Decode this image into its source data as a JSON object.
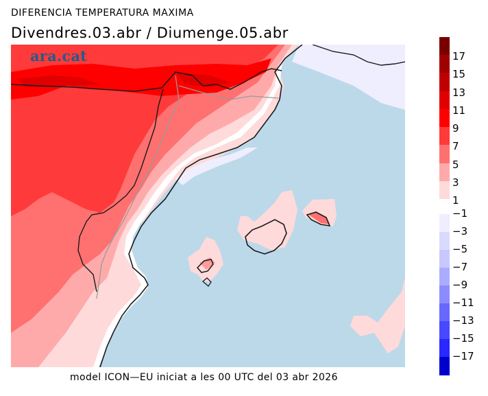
{
  "header": {
    "title": "DIFERENCIA TEMPERATURA MAXIMA",
    "subtitle": "Divendres.03.abr / Diumenge.05.abr"
  },
  "map": {
    "logo_text": "ara.cat",
    "sea_color": "#bcd9ea",
    "coast_color": "#1a1a1a",
    "border_color": "#9a9a9a"
  },
  "footer": {
    "text": "model ICON—EU iniciat a les 00 UTC del 03 abr 2026"
  },
  "colorbar": {
    "positive": {
      "ticks": [
        "17",
        "15",
        "13",
        "11",
        "9",
        "7",
        "5",
        "3",
        "1"
      ],
      "colors": [
        "#7a0000",
        "#a00000",
        "#c00000",
        "#e00000",
        "#ff0000",
        "#ff3a3a",
        "#ff7070",
        "#ffaaaa",
        "#ffdada"
      ]
    },
    "negative": {
      "ticks": [
        "−1",
        "−3",
        "−5",
        "−7",
        "−9",
        "−11",
        "−13",
        "−15",
        "−17"
      ],
      "colors": [
        "#eeeeff",
        "#dadaff",
        "#c8c8ff",
        "#acacff",
        "#8c8cff",
        "#6868ff",
        "#4848ff",
        "#2828ff",
        "#0000cc"
      ]
    }
  }
}
